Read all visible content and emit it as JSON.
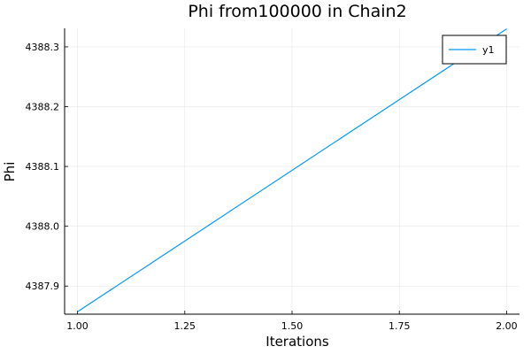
{
  "chart_data": {
    "type": "line",
    "title": "Phi from100000 in Chain2",
    "xlabel": "Iterations",
    "ylabel": "Phi",
    "xlim": [
      0.97,
      2.03
    ],
    "ylim": [
      4387.853,
      4388.331
    ],
    "xticks": [
      1.0,
      1.25,
      1.5,
      1.75,
      2.0
    ],
    "xtick_labels": [
      "1.00",
      "1.25",
      "1.50",
      "1.75",
      "2.00"
    ],
    "yticks": [
      4387.9,
      4388.0,
      4388.1,
      4388.2,
      4388.3
    ],
    "ytick_labels": [
      "4387.9",
      "4388.0",
      "4388.1",
      "4388.2",
      "4388.3"
    ],
    "grid": true,
    "legend_position": "top-right",
    "series": [
      {
        "name": "y1",
        "color": "#009af9",
        "x": [
          1,
          2
        ],
        "y": [
          4387.857,
          4388.33
        ]
      }
    ]
  }
}
